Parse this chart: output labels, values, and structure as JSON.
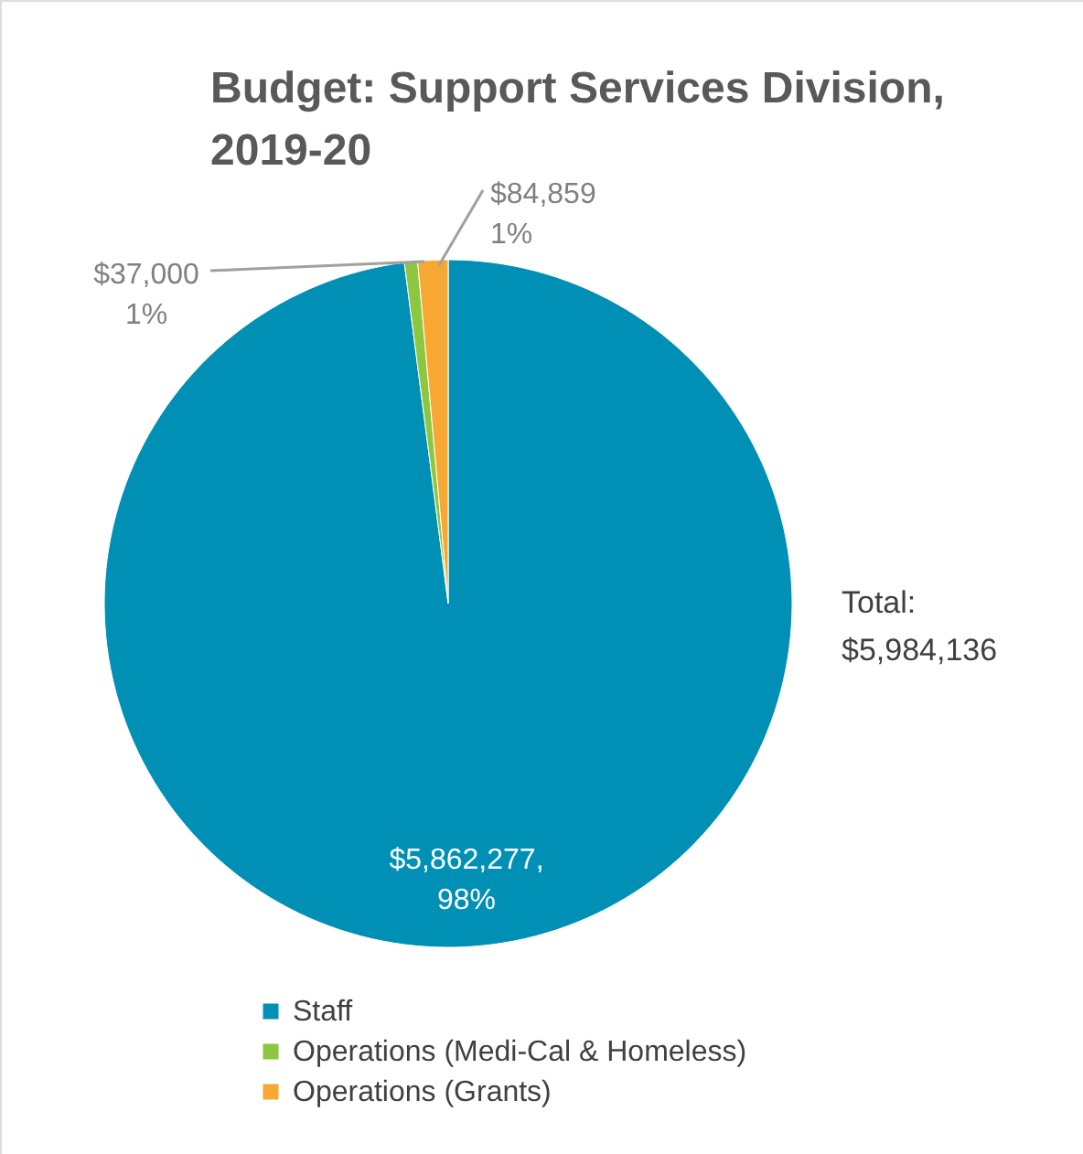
{
  "chart_data": {
    "type": "pie",
    "title": "Budget: Support Services Division,\n2019-20",
    "categories": [
      "Staff",
      "Operations (Medi-Cal & Homeless)",
      "Operations (Grants)"
    ],
    "values": [
      5862277,
      37000,
      84859
    ],
    "colors": [
      "#0090b5",
      "#8dc63f",
      "#f7a833"
    ],
    "value_labels": [
      "$5,862,277,\n98%",
      "$37,000\n1%",
      "$84,859\n1%"
    ],
    "annotations": [
      "Total:\n$5,984,136"
    ],
    "legend": "bottom"
  }
}
